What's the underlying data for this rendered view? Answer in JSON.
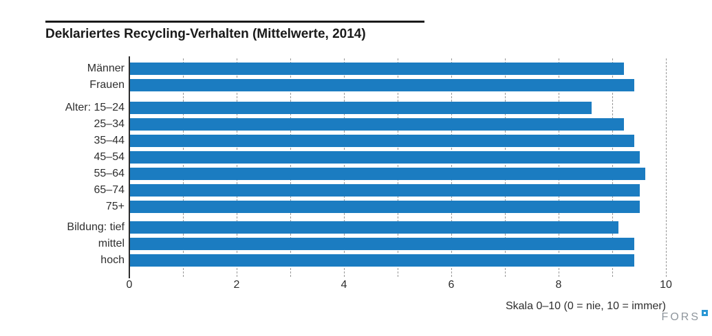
{
  "header": {
    "title": "Deklariertes Recycling-Verhalten (Mittelwerte, 2014)"
  },
  "chart_data": {
    "type": "bar",
    "orientation": "horizontal",
    "title": "Deklariertes Recycling-Verhalten (Mittelwerte, 2014)",
    "xlabel": "Skala 0–10 (0 = nie, 10 = immer)",
    "xlim": [
      0,
      10
    ],
    "xticks": [
      0,
      2,
      4,
      6,
      8,
      10
    ],
    "grid": "dashed vertical gridlines at every integer 1–10",
    "legend": "none",
    "bar_color": "#1b7cc1",
    "groups": [
      {
        "items": [
          {
            "label": "Männer",
            "value": 9.2
          },
          {
            "label": "Frauen",
            "value": 9.4
          }
        ]
      },
      {
        "items": [
          {
            "label": "Alter: 15–24",
            "value": 8.6
          },
          {
            "label": "25–34",
            "value": 9.2
          },
          {
            "label": "35–44",
            "value": 9.4
          },
          {
            "label": "45–54",
            "value": 9.5
          },
          {
            "label": "55–64",
            "value": 9.6
          },
          {
            "label": "65–74",
            "value": 9.5
          },
          {
            "label": "75+",
            "value": 9.5
          }
        ]
      },
      {
        "items": [
          {
            "label": "Bildung: tief",
            "value": 9.1
          },
          {
            "label": "mittel",
            "value": 9.4
          },
          {
            "label": "hoch",
            "value": 9.4
          }
        ]
      }
    ]
  },
  "footer": {
    "scale_note": "Skala 0–10 (0 = nie, 10 = immer)",
    "logo_text": "FORS"
  },
  "colors": {
    "bar": "#1b7cc1",
    "axis": "#2d2d2d",
    "grid": "#979797",
    "title_text": "#1a1a1a",
    "logo_gray": "#8f969d",
    "logo_blue": "#2a97d4"
  }
}
